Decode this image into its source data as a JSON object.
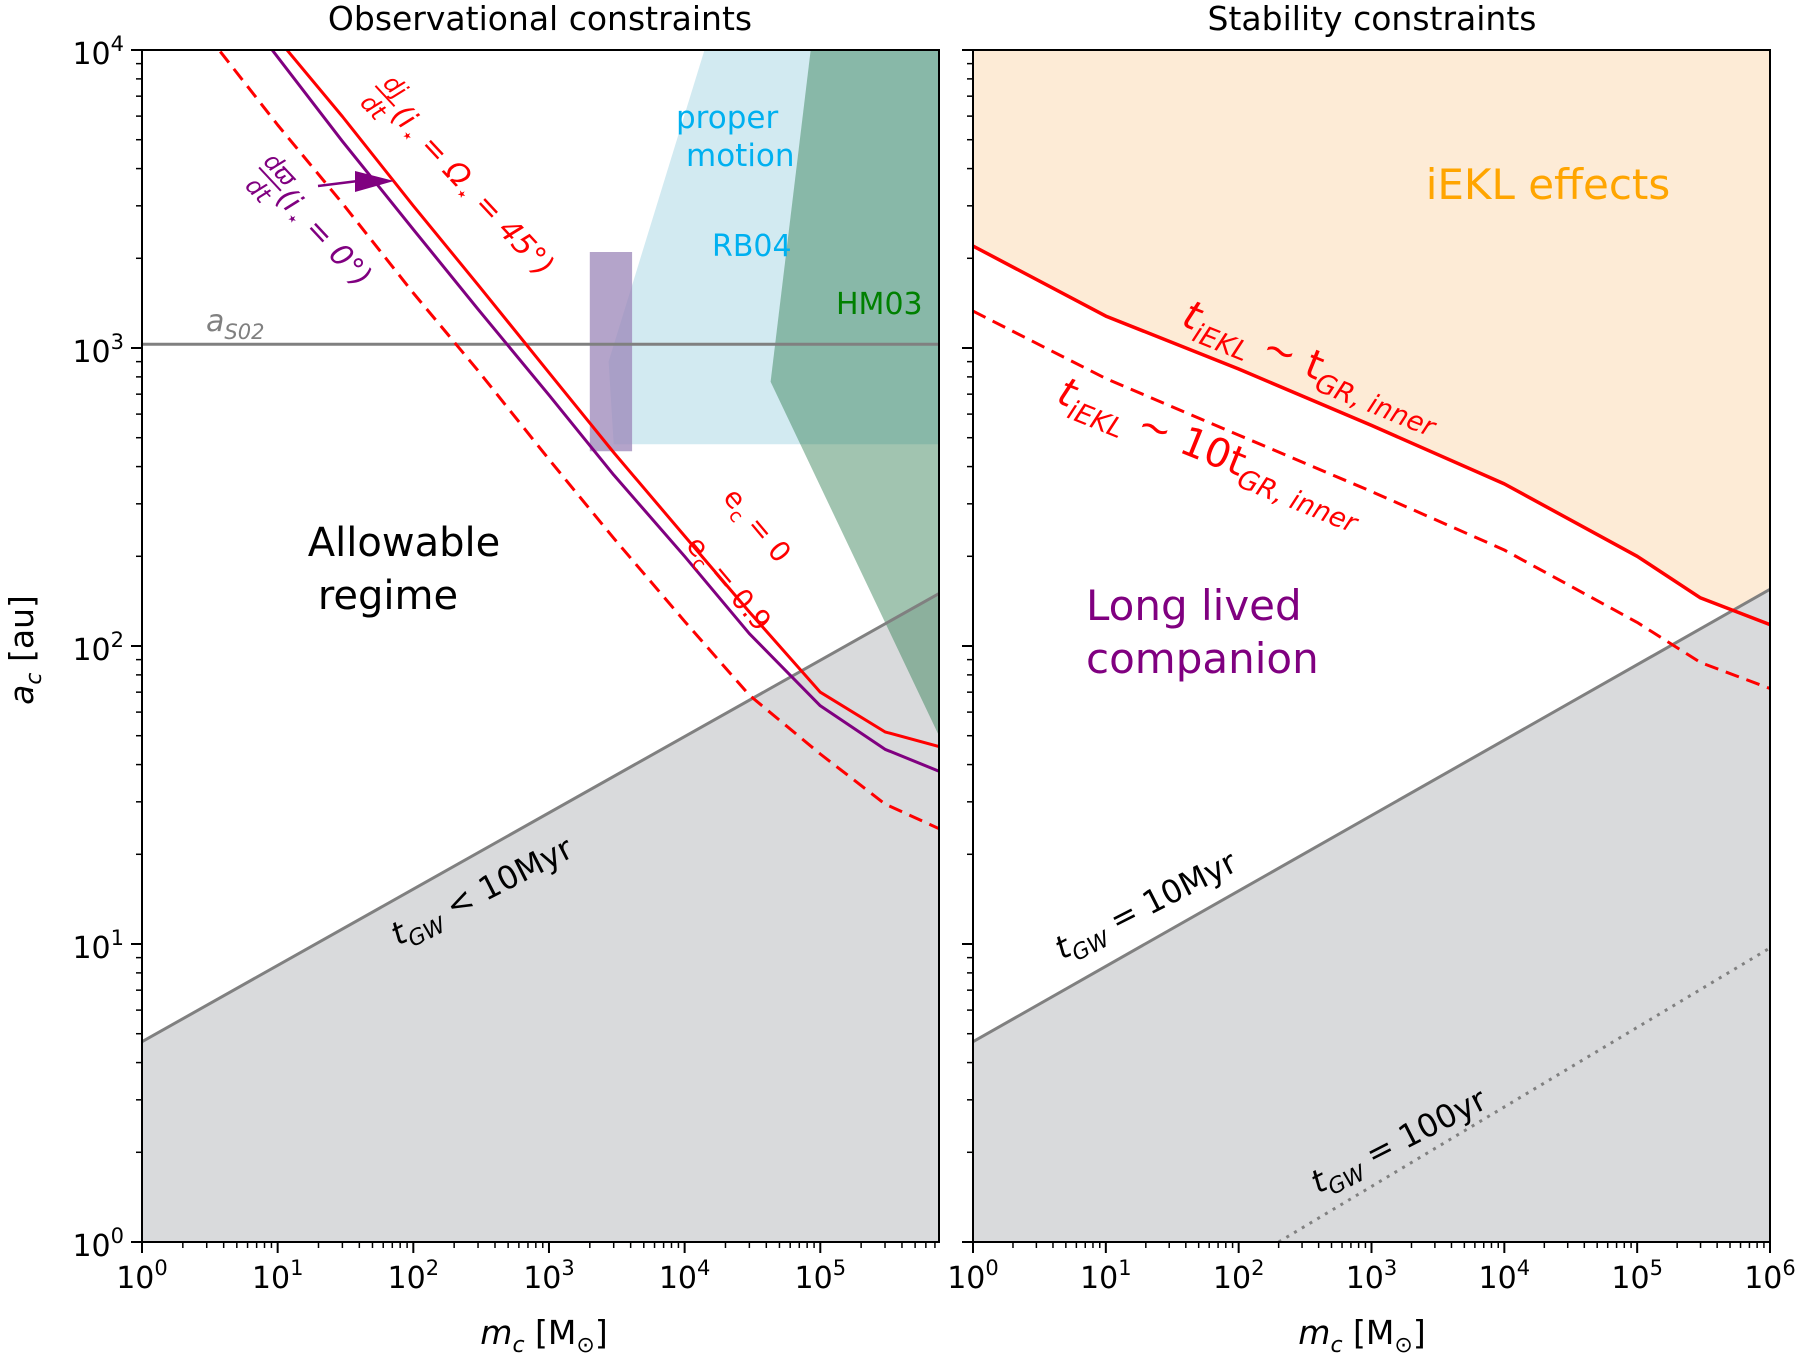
{
  "figure": {
    "ylabel": "a_c [au]",
    "xlabel": "m_c [M⊙]"
  },
  "colors": {
    "red": "#ff0000",
    "purple": "#800080",
    "gray": "#808080",
    "light_blue": "#add8e6",
    "blue_text": "#00b0f0",
    "green": "#2e7d4f",
    "green_text": "#008000",
    "orange_fill": "#fdebd6",
    "orange_text": "#ffa500",
    "gray_fill": "#d9dadc",
    "violet_box": "#9b86b8",
    "black": "#000000"
  },
  "chart_data": [
    {
      "type": "line",
      "title": "Observational constraints",
      "xlabel": "m_c [M⊙]",
      "ylabel": "a_c [au]",
      "xscale": "log",
      "yscale": "log",
      "xlim": [
        1,
        750000
      ],
      "ylim": [
        1,
        10000
      ],
      "xticks": [
        1,
        10,
        100,
        1000,
        10000,
        100000
      ],
      "xticklabels": [
        "10^0",
        "10^1",
        "10^2",
        "10^3",
        "10^4",
        "10^5"
      ],
      "yticks": [
        1,
        10,
        100,
        1000,
        10000
      ],
      "yticklabels": [
        "10^0",
        "10^1",
        "10^2",
        "10^3",
        "10^4"
      ],
      "series": [
        {
          "name": "dj/dt (i* = Ω* = 45°), e_c = 0",
          "color": "#ff0000",
          "style": "solid",
          "x": [
            10,
            30,
            100,
            300,
            1000,
            3000,
            10000,
            30000,
            100000,
            300000,
            750000
          ],
          "y": [
            10900,
            5980,
            3000,
            1630,
            826,
            446,
            234,
            130,
            70,
            51.5,
            46
          ]
        },
        {
          "name": "dj/dt (i* = Ω* = 45°), e_c = 0.9",
          "color": "#ff0000",
          "style": "dashed",
          "x": [
            3,
            10,
            30,
            100,
            300,
            1000,
            3000,
            10000,
            30000,
            100000,
            300000,
            750000
          ],
          "y": [
            11300,
            5600,
            3060,
            1530,
            840,
            423,
            230,
            121,
            68.4,
            43.4,
            29.5,
            24.4
          ]
        },
        {
          "name": "dϖ/dt (i* = 0°)",
          "color": "#800080",
          "style": "solid",
          "x": [
            8,
            30,
            100,
            300,
            1000,
            3000,
            10000,
            30000,
            100000,
            300000,
            750000
          ],
          "y": [
            10800,
            4940,
            2500,
            1350,
            695,
            375,
            200,
            110,
            63,
            45,
            38
          ]
        },
        {
          "name": "a_S02",
          "color": "#808080",
          "style": "solid",
          "x": [
            1,
            750000
          ],
          "y": [
            1030,
            1030
          ]
        },
        {
          "name": "t_GW = 10Myr",
          "color": "#808080",
          "style": "solid",
          "x": [
            1,
            750000
          ],
          "y": [
            4.7,
            150
          ]
        }
      ],
      "regions": [
        {
          "name": "t_GW < 10Myr",
          "color": "#d9dadc",
          "between": "t_GW line and bottom axis"
        },
        {
          "name": "proper motion (RB04)",
          "color": "#add8e6",
          "x": [
            14000,
            750000,
            750000,
            3000,
            2750
          ],
          "y": [
            10000,
            10000,
            475,
            475,
            900
          ]
        },
        {
          "name": "HM03",
          "color": "#2e7d4f",
          "x": [
            85000,
            750000,
            750000,
            43000
          ],
          "y": [
            10000,
            10000,
            50,
            770
          ]
        },
        {
          "name": "purple box",
          "color": "#9b86b8",
          "x": [
            2000,
            4100,
            4100,
            2000
          ],
          "y": [
            2100,
            2100,
            450,
            450
          ]
        }
      ],
      "annotations": {
        "proper": "proper",
        "motion": "motion",
        "rb04": "RB04",
        "hm03": "HM03",
        "a_s02": "a",
        "a_s02_sub": "S02",
        "allowable_1": "Allowable",
        "allowable_2": "regime",
        "ec0": "e",
        "ec0_sub": "c",
        "ec0_val": " = 0",
        "ec09": "e",
        "ec09_sub": "c",
        "ec09_val": " = 0.9",
        "dj_num": "dj",
        "dj_den": "dt",
        "dj_args": "(i",
        "dj_args_sub": "⋆",
        "dj_args_eq": " = Ω",
        "dj_args_sub2": "⋆",
        "dj_args_val": " = 45°)",
        "dw_num": "dϖ",
        "dw_den": "dt",
        "dw_args": "(i",
        "dw_args_sub": "⋆",
        "dw_args_val": " = 0°)",
        "tgw": "t",
        "tgw_sub": "GW",
        "tgw_val": " < 10Myr"
      }
    },
    {
      "type": "line",
      "title": "Stability constraints",
      "xlabel": "m_c [M⊙]",
      "ylabel": "",
      "xscale": "log",
      "yscale": "log",
      "xlim": [
        1,
        1000000
      ],
      "ylim": [
        1,
        10000
      ],
      "xticks": [
        1,
        10,
        100,
        1000,
        10000,
        100000,
        1000000
      ],
      "xticklabels": [
        "10^0",
        "10^1",
        "10^2",
        "10^3",
        "10^4",
        "10^5",
        "10^6"
      ],
      "series": [
        {
          "name": "t_iEKL ~ t_GR,inner",
          "color": "#ff0000",
          "style": "solid",
          "x": [
            1,
            10,
            100,
            1000,
            10000,
            100000,
            300000,
            1000000
          ],
          "y": [
            2200,
            1280,
            850,
            550,
            350,
            200,
            145,
            118
          ]
        },
        {
          "name": "t_iEKL ~ 10 t_GR,inner",
          "color": "#ff0000",
          "style": "dashed",
          "x": [
            1,
            10,
            100,
            1000,
            10000,
            100000,
            300000,
            1000000
          ],
          "y": [
            1330,
            790,
            510,
            330,
            210,
            120,
            88,
            72
          ]
        },
        {
          "name": "t_GW = 10Myr",
          "color": "#808080",
          "style": "solid",
          "x": [
            1,
            1000000
          ],
          "y": [
            4.7,
            155
          ]
        },
        {
          "name": "t_GW = 100yr",
          "color": "#808080",
          "style": "dotted",
          "x": [
            200,
            1000000
          ],
          "y": [
            1,
            9.7
          ]
        }
      ],
      "regions": [
        {
          "name": "iEKL effects",
          "color": "#fdebd6",
          "between": "t_iEKL ~ t_GR,inner line and top axis"
        },
        {
          "name": "t_GW < 10Myr",
          "color": "#d9dadc",
          "between": "t_GW line and bottom axis"
        }
      ],
      "annotations": {
        "iekl": "iEKL effects",
        "long_1": "Long lived",
        "long_2": "companion",
        "t1": "t",
        "t1_sub": "iEKL",
        "t1_mid": " ~ t",
        "t1_sub2": "GR, inner",
        "t2": "t",
        "t2_sub": "iEKL",
        "t2_mid": " ~ 10t",
        "t2_sub2": "GR, inner",
        "tgw10": "t",
        "tgw10_sub": "GW",
        "tgw10_val": " = 10Myr",
        "tgw100": "t",
        "tgw100_sub": "GW",
        "tgw100_val": " = 100yr"
      }
    }
  ]
}
